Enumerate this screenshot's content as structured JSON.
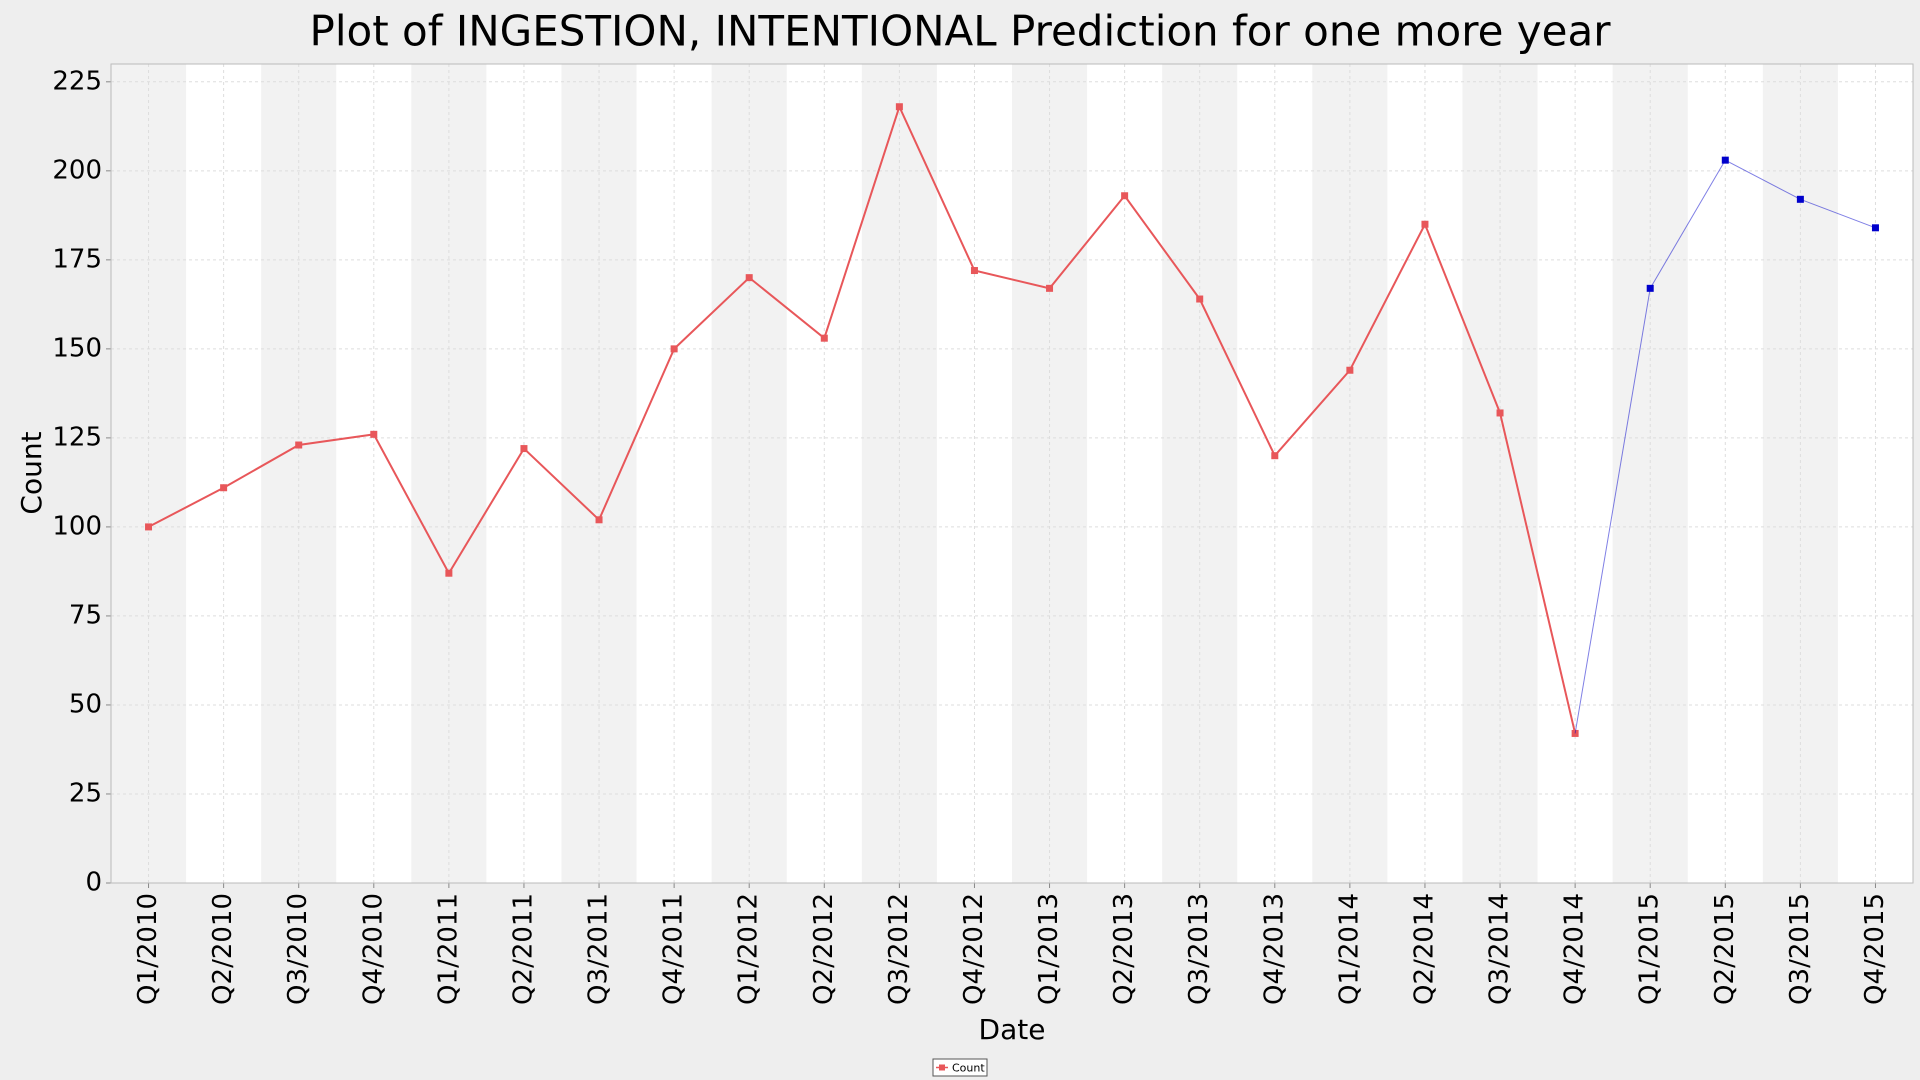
{
  "chart_data": {
    "type": "line",
    "title": "Plot of INGESTION, INTENTIONAL Prediction for one more year",
    "x_label": "Date",
    "y_label": "Count",
    "categories": [
      "Q1/2010",
      "Q2/2010",
      "Q3/2010",
      "Q4/2010",
      "Q1/2011",
      "Q2/2011",
      "Q3/2011",
      "Q4/2011",
      "Q1/2012",
      "Q2/2012",
      "Q3/2012",
      "Q4/2012",
      "Q1/2013",
      "Q2/2013",
      "Q3/2013",
      "Q4/2013",
      "Q1/2014",
      "Q2/2014",
      "Q3/2014",
      "Q4/2014",
      "Q1/2015",
      "Q2/2015",
      "Q3/2015",
      "Q4/2015"
    ],
    "series": [
      {
        "name": "Count",
        "color": "#e8575a",
        "values": [
          100,
          111,
          123,
          126,
          87,
          122,
          102,
          150,
          170,
          153,
          218,
          172,
          167,
          193,
          164,
          120,
          144,
          185,
          132,
          42,
          null,
          null,
          null,
          null
        ]
      },
      {
        "color": "#0000cc",
        "values": [
          null,
          null,
          null,
          null,
          null,
          null,
          null,
          null,
          null,
          null,
          null,
          null,
          null,
          null,
          null,
          null,
          null,
          null,
          null,
          null,
          167,
          203,
          192,
          184
        ]
      }
    ],
    "ylim": [
      0,
      230
    ],
    "yticks": [
      0,
      25,
      50,
      75,
      100,
      125,
      150,
      175,
      200,
      225
    ],
    "grid": true,
    "legend": "bottom"
  }
}
